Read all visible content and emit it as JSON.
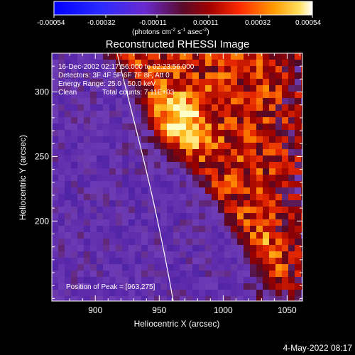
{
  "colorbar": {
    "ticks": [
      "-0.00054",
      "-0.00032",
      "-0.00011",
      "0.00011",
      "0.00032",
      "0.00054"
    ],
    "unit_main": "(photons cm",
    "unit_exp1": "-2",
    "unit_mid": " s",
    "unit_exp2": "-1",
    "unit_mid2": " asec",
    "unit_exp3": "-2",
    "unit_end": ")"
  },
  "chart_data": {
    "type": "heatmap",
    "title": "Reconstructed RHESSI Image",
    "xlabel": "Heliocentric X (arcsec)",
    "ylabel": "Heliocentric Y (arcsec)",
    "xlim": [
      866,
      1062
    ],
    "ylim": [
      138,
      330
    ],
    "x_ticks": [
      900,
      950,
      1000,
      1050
    ],
    "y_ticks": [
      200,
      250,
      300
    ],
    "colorbar_range": [
      -0.00054,
      0.00054
    ],
    "peak": [
      963,
      275
    ],
    "annotations": [
      "16-Dec-2002 02:17:56.000 to 02:23:56.000",
      "Detectors: 3F 4F 5F 6F 7F 8F, Att 0",
      "Energy Range: 25.0 - 50.0 keV",
      "Clean",
      "Total counts: 7.11E+03",
      "Position of Peak = [963,275]"
    ]
  },
  "footer_date": "4-May-2022 08:17"
}
